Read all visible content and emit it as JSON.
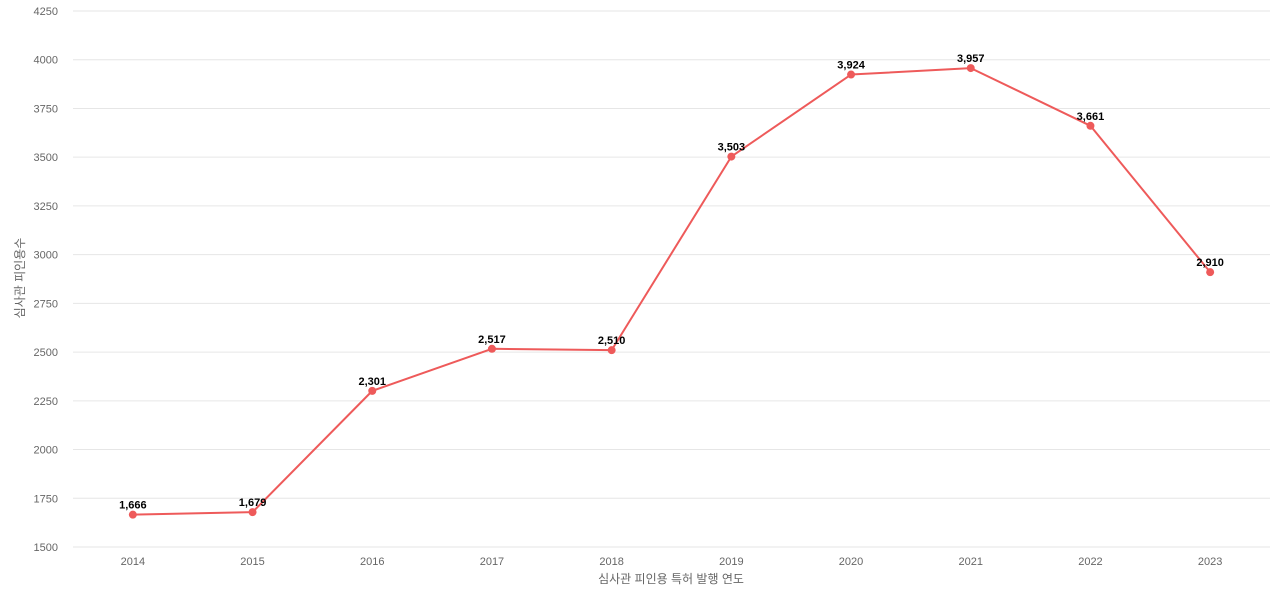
{
  "chart_data": {
    "type": "line",
    "x": [
      "2014",
      "2015",
      "2016",
      "2017",
      "2018",
      "2019",
      "2020",
      "2021",
      "2022",
      "2023"
    ],
    "series": [
      {
        "values": [
          1666,
          1679,
          2301,
          2517,
          2510,
          3503,
          3924,
          3957,
          3661,
          2910
        ],
        "value_labels": [
          "1,666",
          "1,679",
          "2,301",
          "2,517",
          "2,510",
          "3,503",
          "3,924",
          "3,957",
          "3,661",
          "2,910"
        ],
        "color": "#ee5a5a"
      }
    ],
    "xlabel": "심사관 피인용 특허 발행 연도",
    "ylabel": "심사관 피인용수",
    "ylim": [
      1500,
      4250
    ],
    "yticks": [
      "1500",
      "1750",
      "2000",
      "2250",
      "2500",
      "2750",
      "3000",
      "3250",
      "3500",
      "3750",
      "4000",
      "4250"
    ],
    "grid": "horizontal",
    "legend": "none"
  }
}
